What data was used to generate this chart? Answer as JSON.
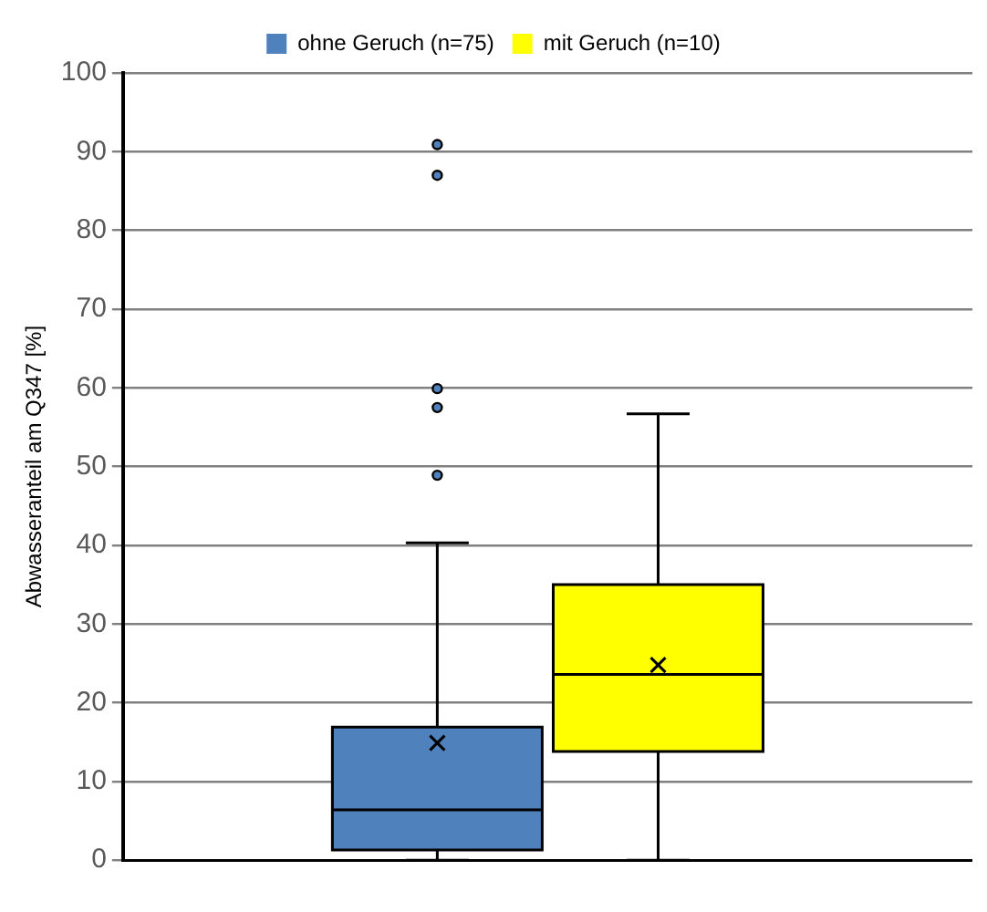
{
  "chart_data": {
    "type": "box",
    "ylabel": "Abwasseranteil am Q347 [%]",
    "categories": [
      null
    ],
    "series": [
      {
        "name": "ohne Geruch (n=75)",
        "color": "#4f81bd",
        "boxes": [
          {
            "low": 0,
            "q1": 1.3,
            "median": 6.4,
            "q3": 16.9,
            "high": 40.3,
            "mean": 14.9,
            "outliers": [
              48.9,
              57.5,
              59.9,
              87.0,
              90.9
            ]
          }
        ]
      },
      {
        "name": "mit Geruch (n=10)",
        "color": "#ffff00",
        "boxes": [
          {
            "low": 0,
            "q1": 13.8,
            "median": 23.6,
            "q3": 35.0,
            "high": 56.7,
            "mean": 24.8
          }
        ]
      }
    ],
    "ylim": [
      0,
      100
    ],
    "yticks": [
      0,
      10,
      20,
      30,
      40,
      50,
      60,
      70,
      80,
      90,
      100
    ],
    "grid": "y",
    "legend": "top"
  }
}
